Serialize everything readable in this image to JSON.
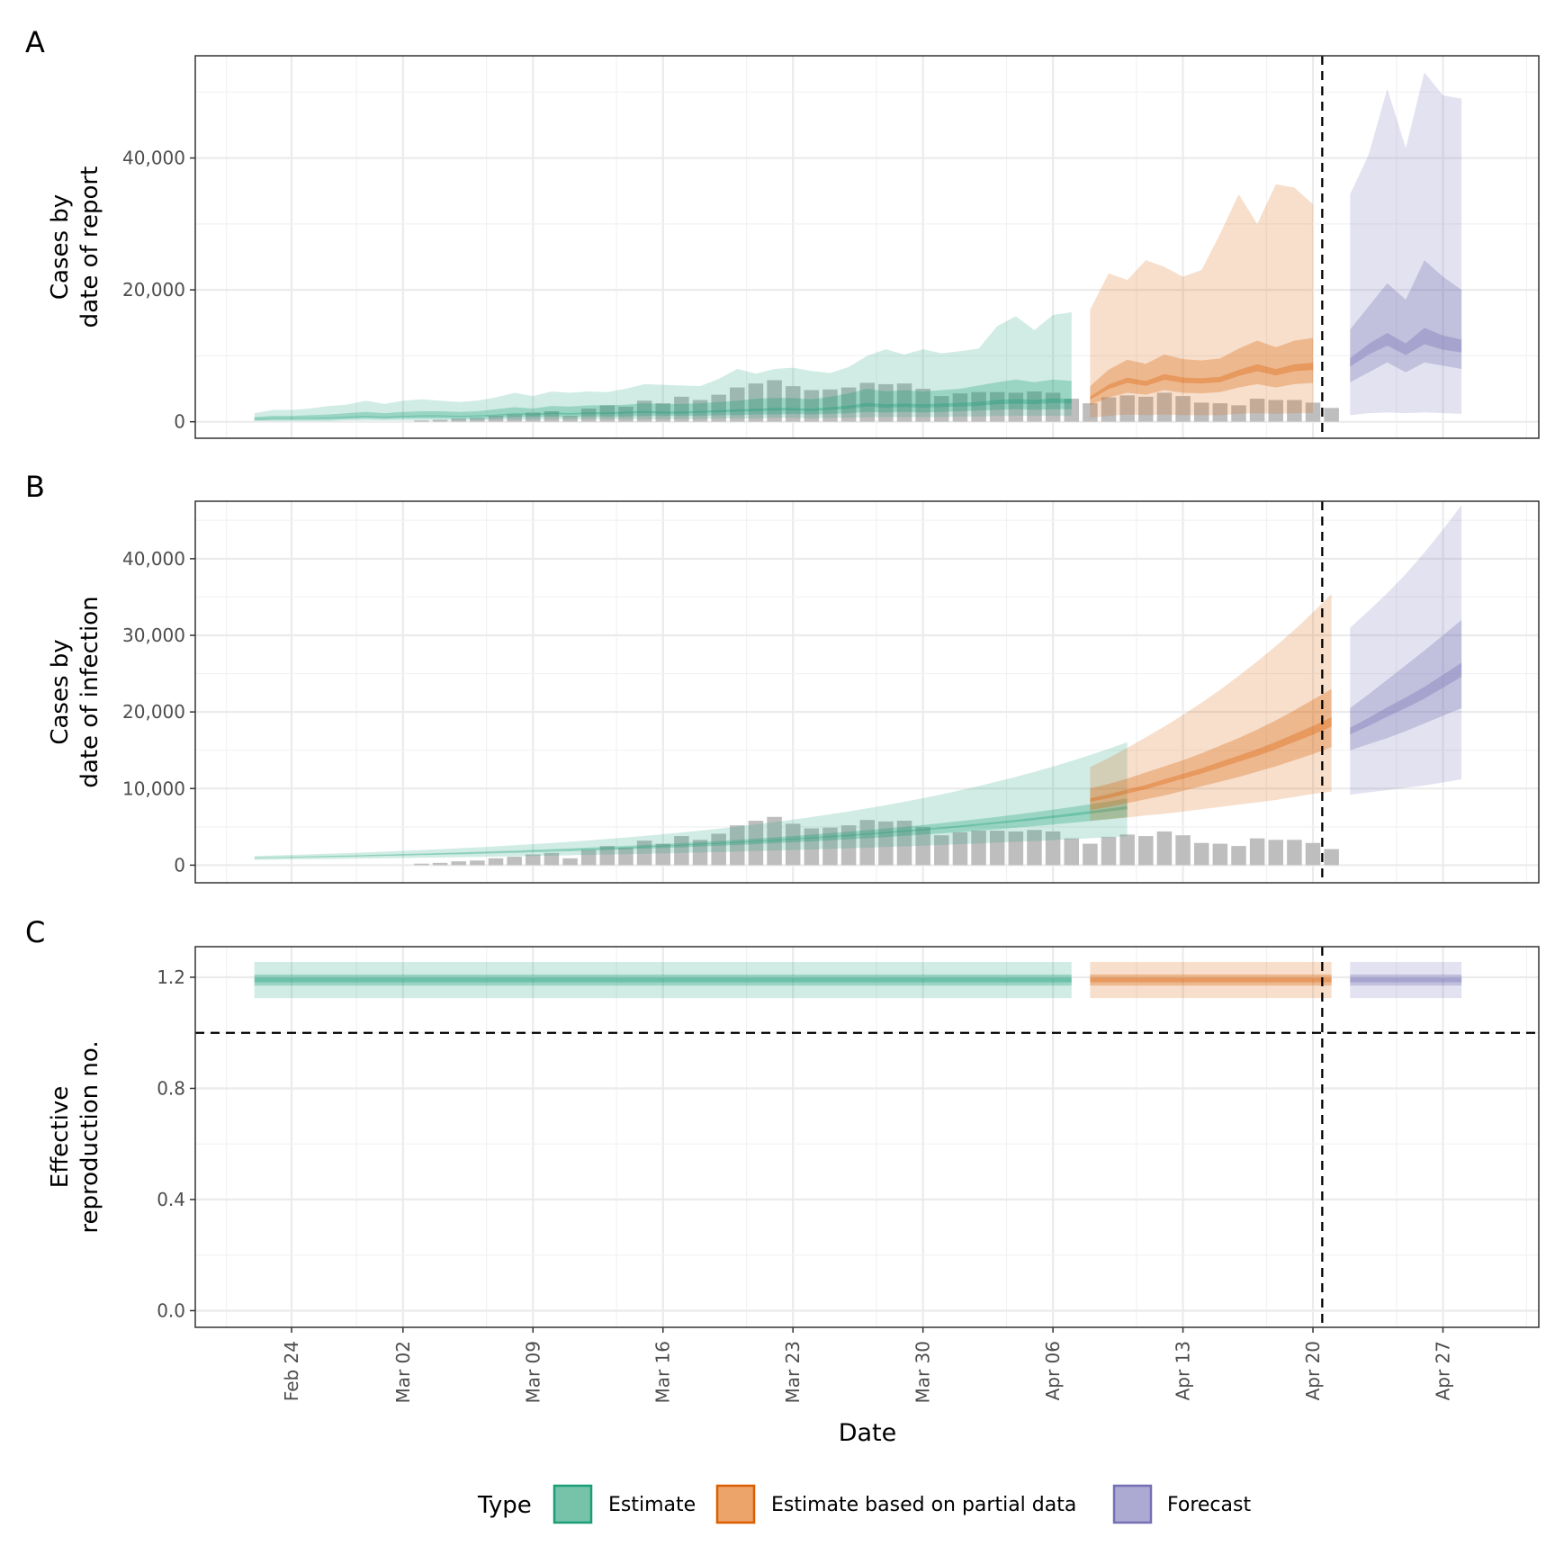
{
  "figure": {
    "x_axis_label": "Date",
    "x_ticks": [
      "Feb 24",
      "Mar 02",
      "Mar 09",
      "Mar 16",
      "Mar 23",
      "Mar 30",
      "Apr 06",
      "Apr 13",
      "Apr 20",
      "Apr 27"
    ],
    "report_date": "Apr 21",
    "legend": {
      "title": "Type",
      "items": [
        {
          "label": "Estimate",
          "fill": "#76c3aa",
          "stroke": "#1b9e77"
        },
        {
          "label": "Estimate based on partial data",
          "fill": "#eda46a",
          "stroke": "#d95f02"
        },
        {
          "label": "Forecast",
          "fill": "#aca9d2",
          "stroke": "#7570b3"
        }
      ]
    },
    "colors": {
      "Estimate": "#1b9e77",
      "Estimate based on partial data": "#d95f02",
      "Forecast": "#7570b3",
      "observed_bars": "#bebebe"
    }
  },
  "chart_data": [
    {
      "panel": "A",
      "type": "area",
      "ylabel": [
        "Cases by",
        "date of report"
      ],
      "y_ticks": [
        0,
        20000,
        40000
      ],
      "y_tick_labels": [
        "0",
        "20,000",
        "40,000"
      ],
      "ylim": [
        -2500,
        55500
      ],
      "start_date": "Feb 22",
      "observed": [
        0,
        0,
        0,
        0,
        0,
        0,
        0,
        0,
        0,
        200,
        300,
        500,
        600,
        900,
        1100,
        1400,
        1600,
        900,
        2000,
        2500,
        2300,
        3200,
        2800,
        3800,
        3300,
        4100,
        5200,
        5800,
        6300,
        5400,
        4800,
        4900,
        5200,
        5900,
        5700,
        5800,
        5000,
        3900,
        4300,
        4500,
        4500,
        4400,
        4600,
        4400,
        3500,
        2800,
        3700,
        4000,
        3800,
        4400,
        3900,
        2900,
        2800,
        2500,
        3500,
        3300,
        3300,
        2900,
        2100
      ],
      "bands": [
        {
          "type": "Estimate",
          "start_date": "Feb 22",
          "median": [
            400,
            500,
            500,
            500,
            600,
            700,
            800,
            700,
            800,
            900,
            900,
            800,
            900,
            1000,
            1200,
            1100,
            1300,
            1200,
            1300,
            1300,
            1400,
            1500,
            1400,
            1400,
            1500,
            1600,
            1700,
            1800,
            1900,
            1900,
            1800,
            2000,
            2200,
            2600,
            2400,
            2500,
            2400,
            2500,
            2600,
            2700,
            3000,
            3100,
            3000,
            3200,
            3100
          ],
          "inner": [
            [
              200,
              300,
              300,
              300,
              300,
              400,
              500,
              400,
              500,
              500,
              500,
              500,
              500,
              600,
              700,
              700,
              800,
              700,
              800,
              800,
              800,
              900,
              900,
              900,
              900,
              1000,
              1000,
              1100,
              1100,
              1200,
              1100,
              1200,
              1300,
              1500,
              1400,
              1500,
              1400,
              1500,
              1600,
              1700,
              1800,
              1900,
              1800,
              1900,
              1900
            ],
            [
              700,
              900,
              900,
              1000,
              1100,
              1300,
              1500,
              1300,
              1500,
              1600,
              1600,
              1500,
              1600,
              1900,
              2200,
              2000,
              2400,
              2300,
              2500,
              2500,
              2600,
              2800,
              2700,
              2700,
              2800,
              3000,
              3200,
              3500,
              3600,
              3600,
              3400,
              3800,
              4300,
              5000,
              4600,
              4800,
              4600,
              4800,
              5000,
              5500,
              6000,
              6400,
              6000,
              6400,
              6200
            ]
          ],
          "outer": [
            [
              100,
              100,
              100,
              100,
              100,
              200,
              200,
              200,
              200,
              200,
              200,
              200,
              200,
              300,
              300,
              300,
              400,
              300,
              400,
              400,
              400,
              400,
              400,
              400,
              400,
              500,
              500,
              500,
              600,
              600,
              500,
              600,
              600,
              700,
              700,
              700,
              700,
              700,
              800,
              800,
              900,
              900,
              900,
              900,
              900
            ],
            [
              1300,
              1800,
              1800,
              2000,
              2400,
              2600,
              3200,
              2700,
              3200,
              3400,
              3200,
              3000,
              3200,
              3700,
              4400,
              3900,
              4600,
              4400,
              4600,
              4500,
              5000,
              5700,
              5600,
              5500,
              5400,
              6500,
              8000,
              7300,
              8000,
              8200,
              7700,
              7400,
              8300,
              10000,
              11000,
              10200,
              11000,
              10400,
              10700,
              11100,
              14500,
              16000,
              13900,
              16200,
              16600
            ]
          ]
        },
        {
          "type": "Estimate based on partial data",
          "start_date": "Apr 08",
          "median": [
            3600,
            5300,
            6300,
            5800,
            6800,
            6300,
            6200,
            6400,
            7400,
            8200,
            7500,
            8200,
            8400
          ],
          "inner": [
            [
              2500,
              3700,
              4400,
              4100,
              4800,
              4400,
              4300,
              4500,
              5200,
              5700,
              5200,
              5700,
              5900
            ],
            [
              5400,
              7900,
              9400,
              8800,
              10200,
              9500,
              9300,
              9600,
              11100,
              12300,
              11300,
              12300,
              12700
            ]
          ],
          "outer": [
            [
              600,
              900,
              1100,
              1000,
              1100,
              1000,
              1000,
              1000,
              1200,
              1300,
              1200,
              1300,
              1300
            ],
            [
              17000,
              22500,
              21500,
              24500,
              23500,
              22000,
              23000,
              28500,
              34500,
              30000,
              36000,
              35500,
              33000
            ]
          ]
        },
        {
          "type": "Forecast",
          "start_date": "Apr 22",
          "median": [
            9000,
            11000,
            12500,
            11000,
            13000,
            12000,
            11500
          ],
          "inner": [
            [
              6000,
              7500,
              9000,
              7500,
              9000,
              8500,
              8000
            ],
            [
              14000,
              17500,
              21000,
              18500,
              24500,
              22000,
              20000
            ]
          ],
          "outer": [
            [
              1000,
              1300,
              1400,
              1300,
              1400,
              1300,
              1200
            ],
            [
              34500,
              40500,
              50500,
              41500,
              53000,
              49500,
              49000
            ]
          ]
        }
      ]
    },
    {
      "panel": "B",
      "type": "area",
      "ylabel": [
        "Cases by",
        "date of infection"
      ],
      "y_ticks": [
        0,
        10000,
        20000,
        30000,
        40000
      ],
      "y_tick_labels": [
        "0",
        "10,000",
        "20,000",
        "30,000",
        "40,000"
      ],
      "ylim": [
        -2300,
        47500
      ],
      "start_date": "Feb 22",
      "observed": [
        0,
        0,
        0,
        0,
        0,
        0,
        0,
        0,
        0,
        200,
        300,
        500,
        600,
        900,
        1100,
        1400,
        1600,
        900,
        2000,
        2500,
        2300,
        3200,
        2800,
        3800,
        3300,
        4100,
        5200,
        5800,
        6300,
        5400,
        4800,
        4900,
        5200,
        5900,
        5700,
        5800,
        5000,
        3900,
        4300,
        4500,
        4500,
        4400,
        4600,
        4400,
        3500,
        2800,
        3700,
        4000,
        3800,
        4400,
        3900,
        2900,
        2800,
        2500,
        3500,
        3300,
        3300,
        2900,
        2100
      ],
      "bands": [
        {
          "type": "Estimate",
          "start_date": "Feb 22",
          "median": [
            950,
            992,
            1037,
            1084,
            1133,
            1184,
            1237,
            1293,
            1352,
            1412,
            1476,
            1542,
            1612,
            1684,
            1760,
            1840,
            1922,
            2009,
            2099,
            2194,
            2292,
            2395,
            2503,
            2616,
            2733,
            2856,
            2985,
            3119,
            3259,
            3405,
            3559,
            3719,
            3886,
            4061,
            4243,
            4434,
            4634,
            4842,
            5060,
            5288,
            5526,
            5774,
            6034,
            6306,
            6589,
            6886,
            7196,
            7519
          ],
          "inner": [
            [
              900,
              938,
              978,
              1019,
              1062,
              1107,
              1154,
              1203,
              1253,
              1306,
              1361,
              1419,
              1479,
              1541,
              1606,
              1674,
              1745,
              1818,
              1895,
              1975,
              2058,
              2145,
              2235,
              2330,
              2428,
              2530,
              2636,
              2747,
              2863,
              2983,
              3108,
              3239,
              3375,
              3517,
              3665,
              3819,
              3979,
              4146,
              4320,
              4502,
              4691,
              4888,
              5093,
              5307,
              5530,
              5762,
              6004,
              6256
            ],
            [
              1000,
              1047,
              1096,
              1148,
              1202,
              1259,
              1318,
              1380,
              1445,
              1513,
              1584,
              1659,
              1737,
              1819,
              1905,
              1995,
              2089,
              2187,
              2290,
              2398,
              2511,
              2630,
              2754,
              2883,
              3019,
              3162,
              3310,
              3466,
              3630,
              3801,
              3980,
              4168,
              4364,
              4570,
              4785,
              5011,
              5247,
              5494,
              5753,
              6024,
              6308,
              6605,
              6917,
              7243,
              7584,
              7942,
              8316,
              8708
            ]
          ],
          "outer": [
            [
              700,
              726,
              752,
              780,
              808,
              838,
              868,
              900,
              933,
              967,
              1002,
              1039,
              1077,
              1116,
              1157,
              1199,
              1243,
              1288,
              1335,
              1384,
              1434,
              1487,
              1541,
              1597,
              1655,
              1715,
              1778,
              1843,
              1910,
              1980,
              2052,
              2127,
              2204,
              2285,
              2368,
              2454,
              2544,
              2637,
              2733,
              2832,
              2936,
              3043,
              3154,
              3268,
              3388,
              3511,
              3639,
              3772
            ],
            [
              1200,
              1268,
              1340,
              1416,
              1497,
              1582,
              1671,
              1766,
              1866,
              1972,
              2084,
              2202,
              2327,
              2459,
              2599,
              2746,
              2902,
              3066,
              3240,
              3424,
              3618,
              3824,
              4041,
              4270,
              4512,
              4768,
              5038,
              5324,
              5626,
              5945,
              6282,
              6639,
              7015,
              7413,
              7833,
              8278,
              8747,
              9243,
              9768,
              10322,
              10907,
              11526,
              12180,
              12870,
              13601,
              14372,
              15187,
              16049
            ]
          ]
        },
        {
          "type": "Estimate based on partial data",
          "start_date": "Apr 08",
          "median": [
            8500,
            9000,
            9600,
            10200,
            10900,
            11600,
            12300,
            13100,
            13900,
            14700,
            15600,
            16600,
            17600,
            18700
          ],
          "inner": [
            [
              7200,
              7600,
              8100,
              8600,
              9100,
              9700,
              10300,
              10900,
              11500,
              12200,
              12900,
              13700,
              14500,
              15400
            ],
            [
              10000,
              10600,
              11300,
              12100,
              12900,
              13700,
              14600,
              15600,
              16600,
              17700,
              18900,
              20200,
              21600,
              23000
            ]
          ],
          "outer": [
            [
              5800,
              6000,
              6200,
              6500,
              6700,
              7000,
              7300,
              7600,
              7900,
              8200,
              8500,
              8900,
              9300,
              9600
            ],
            [
              12800,
              14000,
              15300,
              16700,
              18100,
              19600,
              21200,
              22900,
              24700,
              26600,
              28600,
              30700,
              33000,
              35400
            ]
          ]
        },
        {
          "type": "Forecast",
          "start_date": "Apr 22",
          "median": [
            17500,
            18700,
            20000,
            21200,
            22500,
            24000,
            25500
          ],
          "inner": [
            [
              15000,
              15800,
              16600,
              17500,
              18500,
              19500,
              20500
            ],
            [
              20500,
              22300,
              24200,
              26100,
              28000,
              30000,
              32000
            ]
          ],
          "outer": [
            [
              9200,
              9500,
              9800,
              10100,
              10400,
              10800,
              11200
            ],
            [
              31000,
              33200,
              35500,
              38000,
              40800,
              43800,
              47000
            ]
          ]
        }
      ]
    },
    {
      "panel": "C",
      "type": "area",
      "ylabel": [
        "Effective",
        "reproduction no."
      ],
      "y_ticks": [
        0,
        0.4,
        0.8,
        1.2
      ],
      "y_tick_labels": [
        "0.0",
        "0.4",
        "0.8",
        "1.2"
      ],
      "ylim": [
        -0.06,
        1.31
      ],
      "reference_line": 1.0,
      "bands": [
        {
          "type": "Estimate",
          "start_date": "Feb 22",
          "end_date": "Apr 07",
          "median": 1.19,
          "inner": [
            1.17,
            1.21
          ],
          "outer": [
            1.125,
            1.255
          ]
        },
        {
          "type": "Estimate based on partial data",
          "start_date": "Apr 08",
          "end_date": "Apr 21",
          "median": 1.19,
          "inner": [
            1.17,
            1.21
          ],
          "outer": [
            1.125,
            1.255
          ]
        },
        {
          "type": "Forecast",
          "start_date": "Apr 22",
          "end_date": "Apr 28",
          "median": 1.19,
          "inner": [
            1.17,
            1.21
          ],
          "outer": [
            1.125,
            1.255
          ]
        }
      ]
    }
  ]
}
